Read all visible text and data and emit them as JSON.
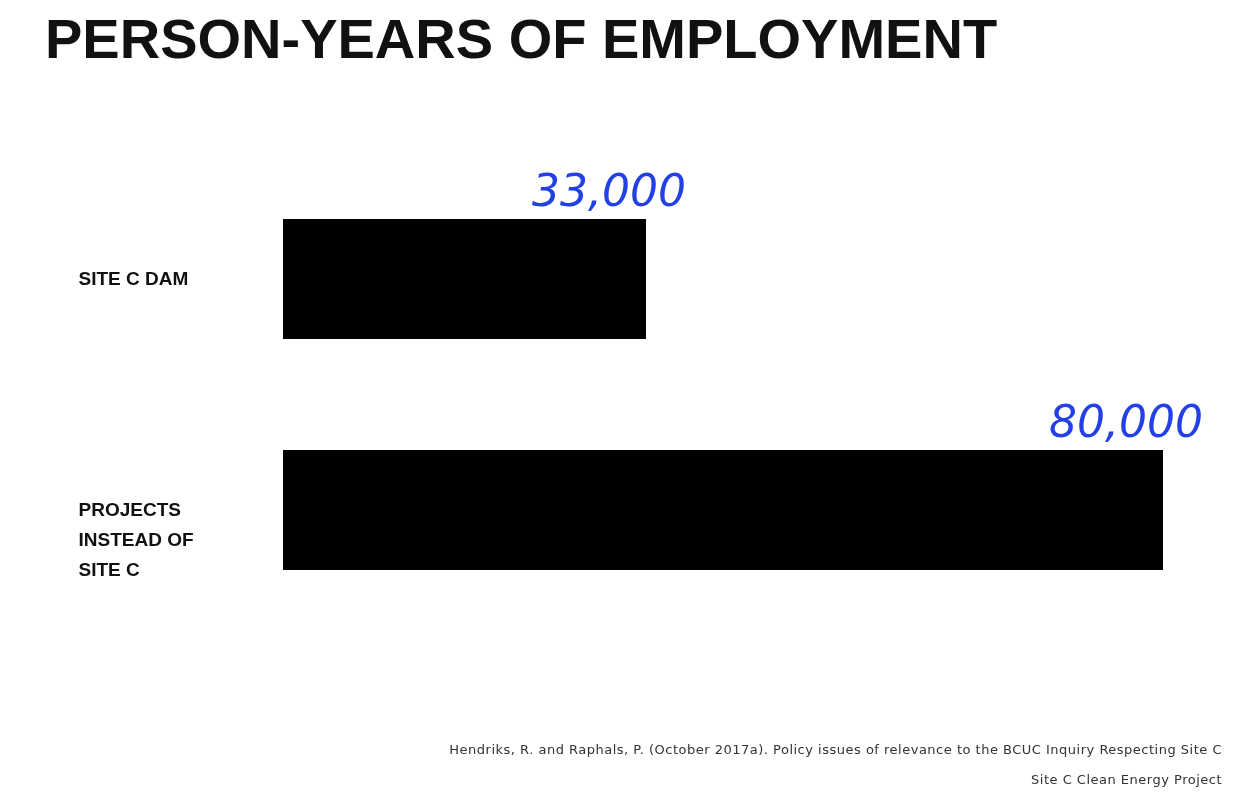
{
  "chart_data": {
    "type": "bar",
    "orientation": "horizontal",
    "title": "PERSON-YEARS OF EMPLOYMENT",
    "categories": [
      "SITE C DAM",
      "PROJECTS INSTEAD OF SITE C"
    ],
    "values": [
      33000,
      80000
    ],
    "color": "#000000",
    "value_labels": [
      "33,000",
      "80,000"
    ],
    "annotations": [
      "Hendriks, R. and Raphals, P. (October 2017a). Policy issues of relevance to the BCUC Inquiry Respecting Site C",
      "Site C Clean Energy Project"
    ]
  }
}
